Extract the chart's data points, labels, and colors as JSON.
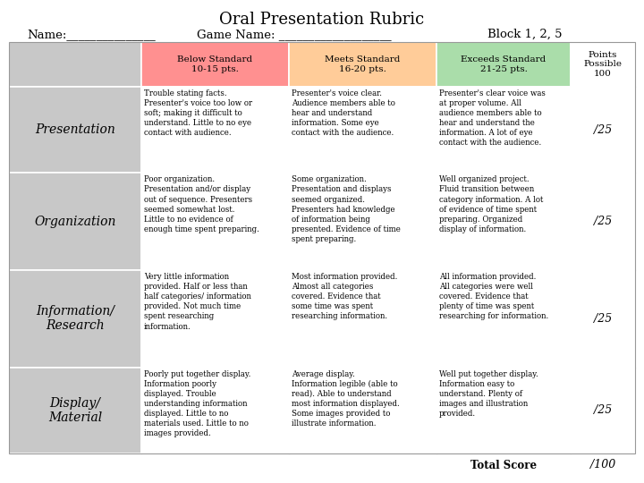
{
  "title": "Oral Presentation Rubric",
  "name_line": "Name:_______________     Game Name: ___________________     Block 1, 2, 5",
  "header_labels": [
    "Below Standard\n10-15 pts.",
    "Meets Standard\n16-20 pts.",
    "Exceeds Standard\n21-25 pts.",
    "Points\nPossible\n100"
  ],
  "header_colors": [
    "#FF9090",
    "#FFCC99",
    "#AADDAA",
    "#FFFFFF"
  ],
  "row_labels": [
    "Presentation",
    "Organization",
    "Information/\nResearch",
    "Display/\nMaterial"
  ],
  "row_label_bg": "#C8C8C8",
  "below_col_texts": [
    "Trouble stating facts.\nPresenter's voice too low or\nsoft; making it difficult to\nunderstand. Little to no eye\ncontact with audience.",
    "Poor organization.\nPresentation and/or display\nout of sequence. Presenters\nseemed somewhat lost.\nLittle to no evidence of\nenough time spent preparing.",
    "Very little information\nprovided. Half or less than\nhalf categories/ information\nprovided. Not much time\nspent researching\ninformation.",
    "Poorly put together display.\nInformation poorly\ndisplayed. Trouble\nunderstanding information\ndisplayed. Little to no\nmaterials used. Little to no\nimages provided."
  ],
  "meets_col_texts": [
    "Presenter's voice clear.\nAudience members able to\nhear and understand\ninformation. Some eye\ncontact with the audience.",
    "Some organization.\nPresentation and displays\nseemed organized.\nPresenters had knowledge\nof information being\npresented. Evidence of time\nspent preparing.",
    "Most information provided.\nAlmost all categories\ncovered. Evidence that\nsome time was spent\nresearching information.",
    "Average display.\nInformation legible (able to\nread). Able to understand\nmost information displayed.\nSome images provided to\nillustrate information."
  ],
  "exceeds_col_texts": [
    "Presenter's clear voice was\nat proper volume. All\naudience members able to\nhear and understand the\ninformation. A lot of eye\ncontact with the audience.",
    "Well organized project.\nFluid transition between\ncategory information. A lot\nof evidence of time spent\npreparing. Organized\ndisplay of information.",
    "All information provided.\nAll categories were well\ncovered. Evidence that\nplenty of time was spent\nresearching for information.",
    "Well put together display.\nInformation easy to\nunderstand. Plenty of\nimages and illustration\nprovided."
  ],
  "points_texts": [
    "/25",
    "/25",
    "/25",
    "/25"
  ],
  "total_score_label": "Total Score",
  "total_score_value": "/100",
  "font_family": "DejaVu Serif"
}
